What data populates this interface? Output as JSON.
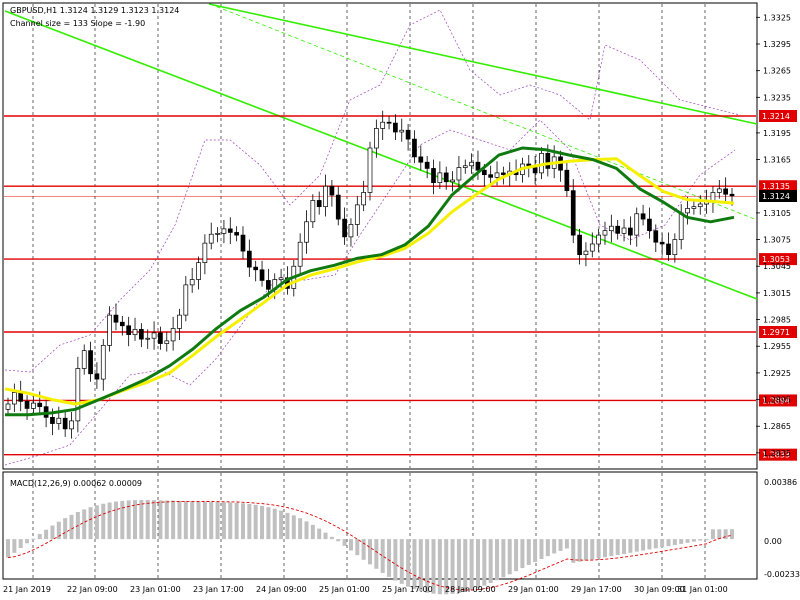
{
  "header": {
    "symbol_line": "GBPUSD,H1  1.3124 1.3129 1.3123 1.3124",
    "channel_info": "Channel size = 133 Slope = -1.90"
  },
  "macd_panel": {
    "label": "MACD(12,26,9) 0.00062 0.00009",
    "axis_ticks": [
      "0.00386",
      "0.00",
      "-0.00233"
    ]
  },
  "colors": {
    "candle": "#000000",
    "ma_fast": "#0f7a0f",
    "ma_slow": "#f5f000",
    "channel": "#33ee00",
    "envelope": "#a040c0",
    "level_line": "#e00000",
    "level_label_bg": "#e00000",
    "current_price_bg": "#000000",
    "macd_hist": "#c0c0c0",
    "macd_signal": "#e00000"
  },
  "chart_data": [
    {
      "type": "candlestick",
      "symbol": "GBPUSD",
      "timeframe": "H1",
      "ylim": [
        1.2818,
        1.334
      ],
      "y_ticks": [
        "1.3325",
        "1.3295",
        "1.3265",
        "1.3235",
        "1.3195",
        "1.3165",
        "1.3105",
        "1.3075",
        "1.3045",
        "1.3015",
        "1.2985",
        "1.2955",
        "1.2925",
        "1.2895",
        "1.2865",
        "1.2835"
      ],
      "x_ticks": [
        "21 Jan 2019",
        "22 Jan 09:00",
        "23 Jan 01:00",
        "23 Jan 17:00",
        "24 Jan 09:00",
        "25 Jan 01:00",
        "25 Jan 17:00",
        "28 Jan 09:00",
        "29 Jan 01:00",
        "29 Jan 17:00",
        "30 Jan 09:00",
        "31 Jan 01:00"
      ],
      "levels": [
        {
          "label": "1.3214",
          "value": 1.3214
        },
        {
          "label": "1.3135",
          "value": 1.3135
        },
        {
          "label": "1.3053",
          "value": 1.3053
        },
        {
          "label": "1.2971",
          "value": 1.2971
        },
        {
          "label": "1.2894",
          "value": 1.2894
        },
        {
          "label": "1.2833",
          "value": 1.2833
        }
      ],
      "current_price": {
        "label": "1.3124",
        "value": 1.3124
      },
      "candle_closes": [
        1.289,
        1.2903,
        1.2893,
        1.2885,
        1.2891,
        1.2887,
        1.2875,
        1.2868,
        1.2874,
        1.2862,
        1.2871,
        1.293,
        1.295,
        1.2924,
        1.2918,
        1.2956,
        1.299,
        1.2982,
        1.2978,
        1.2968,
        1.2974,
        1.2963,
        1.2964,
        1.297,
        1.2958,
        1.2961,
        1.2975,
        1.299,
        1.3024,
        1.303,
        1.3049,
        1.3071,
        1.3081,
        1.3082,
        1.3087,
        1.3083,
        1.308,
        1.3062,
        1.3044,
        1.3041,
        1.3029,
        1.3019,
        1.303,
        1.3032,
        1.302,
        1.3045,
        1.3072,
        1.3095,
        1.3119,
        1.3112,
        1.3135,
        1.3125,
        1.3098,
        1.3078,
        1.3092,
        1.3114,
        1.3128,
        1.3178,
        1.32,
        1.3207,
        1.3206,
        1.3196,
        1.3198,
        1.3188,
        1.3168,
        1.3162,
        1.3155,
        1.3139,
        1.315,
        1.314,
        1.3142,
        1.3156,
        1.3158,
        1.3162,
        1.3153,
        1.3148,
        1.3145,
        1.315,
        1.3148,
        1.3152,
        1.3148,
        1.316,
        1.3156,
        1.315,
        1.3172,
        1.3155,
        1.3168,
        1.3153,
        1.313,
        1.308,
        1.3058,
        1.3062,
        1.307,
        1.308,
        1.3085,
        1.309,
        1.3082,
        1.3088,
        1.308,
        1.3104,
        1.3098,
        1.3085,
        1.3072,
        1.307,
        1.3058,
        1.3075,
        1.3105,
        1.311,
        1.3112,
        1.3115,
        1.3118,
        1.3128,
        1.3132,
        1.3126,
        1.3124
      ],
      "moving_averages": [
        {
          "name": "",
          "color": "#0f7a0f",
          "values": [
            1.2878,
            1.2878,
            1.288,
            1.2884,
            1.2895,
            1.2906,
            1.2918,
            1.2933,
            1.2952,
            1.2975,
            1.2995,
            1.301,
            1.303,
            1.304,
            1.3046,
            1.3054,
            1.3058,
            1.3069,
            1.309,
            1.3125,
            1.3148,
            1.317,
            1.3178,
            1.3176,
            1.317,
            1.3165,
            1.3155,
            1.3132,
            1.3117,
            1.31,
            1.3095,
            1.31
          ]
        },
        {
          "name": "",
          "color": "#f5f000",
          "values": [
            1.2907,
            1.2902,
            1.2895,
            1.289,
            1.2895,
            1.2905,
            1.2914,
            1.2925,
            1.2945,
            1.2966,
            1.2985,
            1.3004,
            1.3024,
            1.3035,
            1.3042,
            1.305,
            1.3056,
            1.3065,
            1.3082,
            1.3106,
            1.3125,
            1.3143,
            1.3155,
            1.316,
            1.3163,
            1.3165,
            1.3166,
            1.3147,
            1.3129,
            1.312,
            1.3118,
            1.3116
          ]
        }
      ]
    },
    {
      "type": "bar",
      "name": "MACD(12,26,9)",
      "ylim": [
        -0.00233,
        0.00386
      ],
      "macd": 0.00062,
      "signal": 9e-05
    }
  ]
}
